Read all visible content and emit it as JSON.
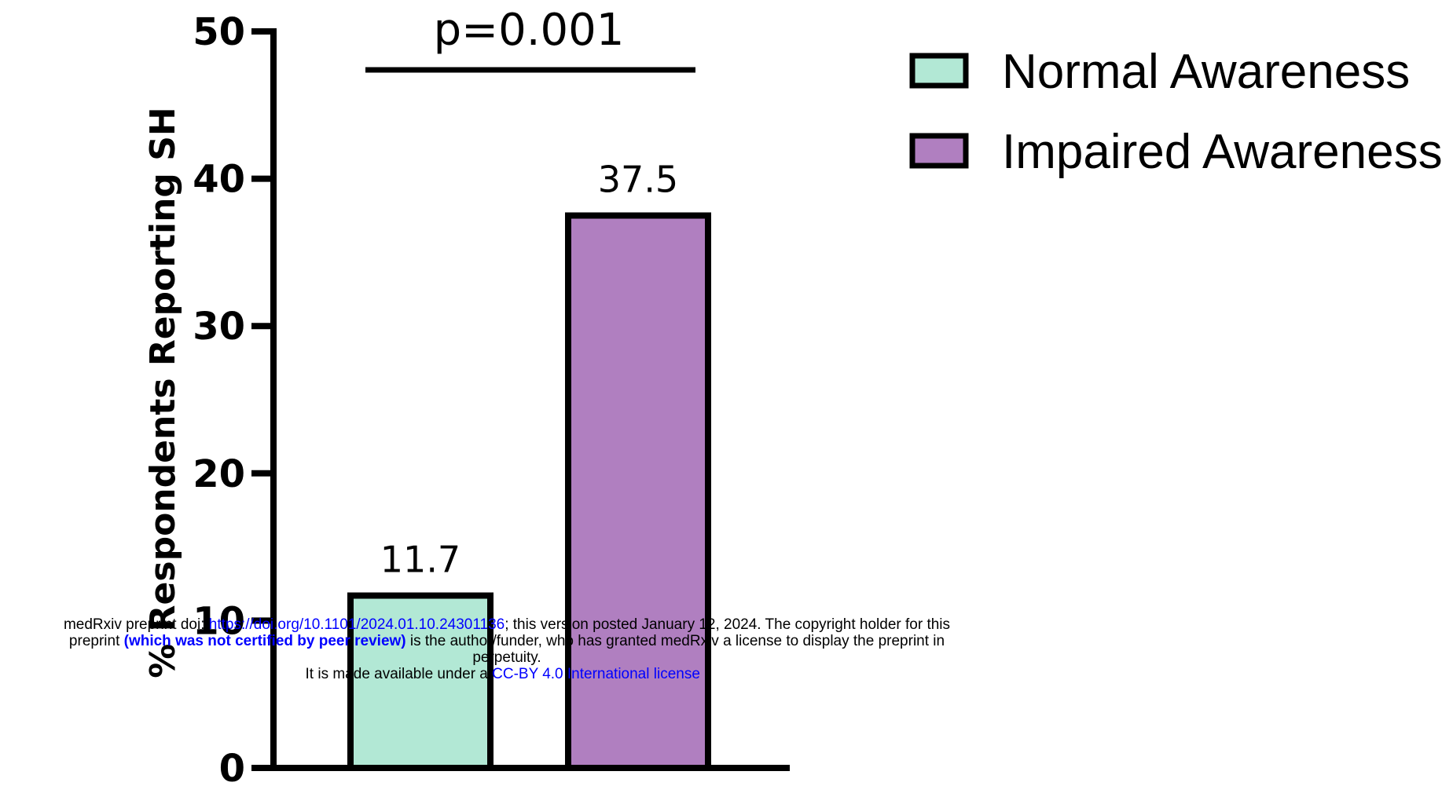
{
  "chart_data": {
    "type": "bar",
    "categories": [
      "Normal Awareness",
      "Impaired Awareness"
    ],
    "values": [
      11.7,
      37.5
    ],
    "value_labels": [
      "11.7",
      "37.5"
    ],
    "colors": [
      "#b2e8d5",
      "#b07fc0"
    ],
    "ylabel": "% Respondents Reporting SH",
    "ylim": [
      0,
      50
    ],
    "yticks": [
      0,
      10,
      20,
      30,
      40,
      50
    ],
    "ytick_labels": [
      "0",
      "10",
      "20",
      "30",
      "40",
      "50"
    ],
    "significance": {
      "label": "p=0.001"
    },
    "legend": {
      "position": "top-right",
      "entries": [
        {
          "name": "Normal Awareness",
          "color": "#b2e8d5"
        },
        {
          "name": "Impaired Awareness",
          "color": "#b07fc0"
        }
      ]
    },
    "grid": false
  },
  "footer": {
    "line1_prefix": "medRxiv preprint doi: ",
    "doi_link": "https://doi.org/10.1101/2024.01.10.24301136",
    "line1_suffix": "; this version posted January 12, 2024. The copyright holder for this",
    "line2_prefix": "preprint ",
    "peer_review": "(which was not certified by peer review)",
    "line2_suffix": " is the author/funder, who has granted medRxiv a license to display the preprint in",
    "line3": "perpetuity.",
    "line4_prefix": "It is made available under a ",
    "license_link": "CC-BY 4.0 International license",
    "line4_suffix": " ."
  }
}
